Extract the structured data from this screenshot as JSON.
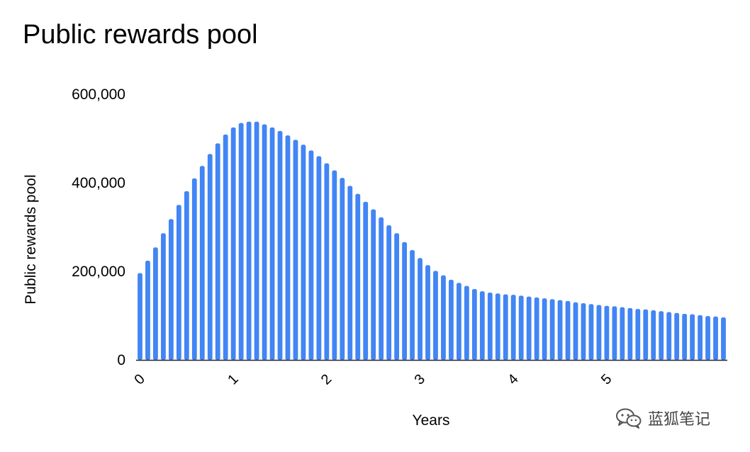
{
  "title": "Public rewards pool",
  "watermark": {
    "text": "蓝狐笔记",
    "icon": "wechat-icon"
  },
  "colors": {
    "bar": "#4285f4",
    "axis": "#000000",
    "text": "#000000"
  },
  "chart_data": {
    "type": "bar",
    "title": "Public rewards pool",
    "xlabel": "Years",
    "ylabel": "Public rewards pool",
    "ylim": [
      0,
      600000
    ],
    "yticks": [
      "0",
      "200,000",
      "400,000",
      "600,000"
    ],
    "xticks": [
      "0",
      "1",
      "2",
      "3",
      "4",
      "5"
    ],
    "bars_per_year": 12,
    "grid": false,
    "legend": "none",
    "series": [
      {
        "values": [
          196000,
          224000,
          254000,
          286000,
          318000,
          350000,
          381000,
          410000,
          438000,
          465000,
          489000,
          509000,
          525000,
          535000,
          538000,
          538000,
          532000,
          525000,
          517000,
          507000,
          497000,
          486000,
          473000,
          460000,
          444000,
          428000,
          411000,
          393000,
          375000,
          357000,
          340000,
          322000,
          304000,
          286000,
          266000,
          248000,
          230000,
          214000,
          201000,
          191000,
          181000,
          174000,
          167000,
          160000,
          155000,
          152000,
          150000,
          148000,
          147000,
          145000,
          143000,
          141000,
          139000,
          137000,
          135000,
          133000,
          130000,
          128000,
          126000,
          124000,
          122000,
          121000,
          119000,
          117000,
          115000,
          114000,
          112000,
          110000,
          108000,
          106000,
          104000,
          103000,
          101000,
          99000,
          98000,
          96000
        ]
      }
    ]
  }
}
